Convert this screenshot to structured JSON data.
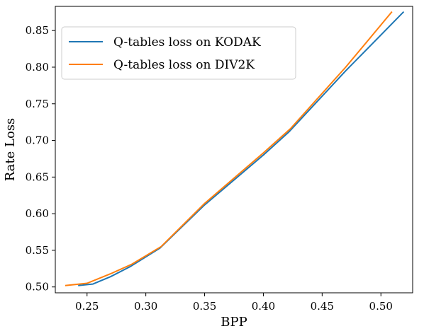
{
  "chart_data": {
    "type": "line",
    "xlabel": "BPP",
    "ylabel": "Rate Loss",
    "xlim": [
      0.223,
      0.527
    ],
    "ylim": [
      0.492,
      0.883
    ],
    "xticks": [
      0.25,
      0.3,
      0.35,
      0.4,
      0.45,
      0.5
    ],
    "xtick_labels": [
      "0.25",
      "0.30",
      "0.35",
      "0.40",
      "0.45",
      "0.50"
    ],
    "yticks": [
      0.5,
      0.55,
      0.6,
      0.65,
      0.7,
      0.75,
      0.8,
      0.85
    ],
    "ytick_labels": [
      "0.50",
      "0.55",
      "0.60",
      "0.65",
      "0.70",
      "0.75",
      "0.80",
      "0.85"
    ],
    "grid": false,
    "legend_position": "top-left",
    "series": [
      {
        "name": "Q-tables loss on KODAK",
        "color": "#1f77b4",
        "x": [
          0.243,
          0.255,
          0.27,
          0.287,
          0.312,
          0.35,
          0.4,
          0.422,
          0.47,
          0.519
        ],
        "y": [
          0.502,
          0.504,
          0.514,
          0.528,
          0.553,
          0.612,
          0.68,
          0.712,
          0.795,
          0.875
        ]
      },
      {
        "name": "Q-tables loss on DIV2K",
        "color": "#ff7f0e",
        "x": [
          0.232,
          0.25,
          0.27,
          0.288,
          0.313,
          0.35,
          0.4,
          0.423,
          0.47,
          0.509
        ],
        "y": [
          0.502,
          0.505,
          0.518,
          0.531,
          0.555,
          0.614,
          0.683,
          0.716,
          0.8,
          0.875
        ]
      }
    ]
  }
}
